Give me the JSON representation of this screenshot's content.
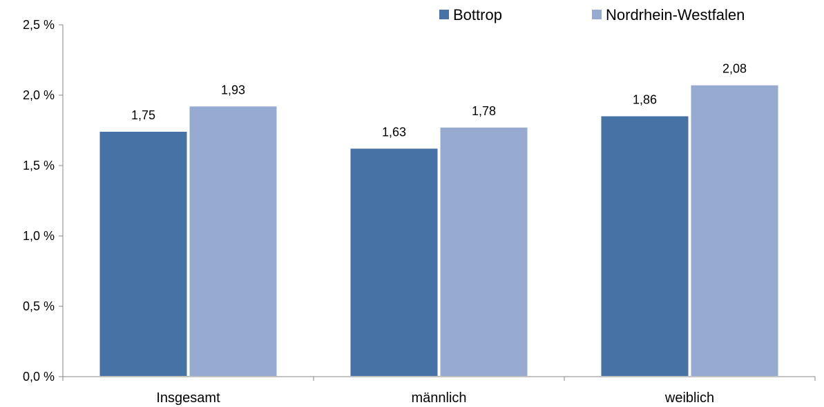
{
  "chart_data": {
    "type": "bar",
    "title": "",
    "xlabel": "",
    "ylabel": "",
    "categories": [
      "Insgesamt",
      "männlich",
      "weiblich"
    ],
    "series": [
      {
        "name": "Bottrop",
        "values": [
          1.75,
          1.63,
          1.86
        ],
        "labels": [
          "1,75",
          "1,63",
          "1,86"
        ],
        "color": "#4672a6"
      },
      {
        "name": "Nordrhein-Westfalen",
        "values": [
          1.93,
          1.78,
          2.08
        ],
        "labels": [
          "1,93",
          "1,78",
          "2,08"
        ],
        "color": "#97abd2"
      }
    ],
    "ylim": [
      0,
      2.5
    ],
    "yticks": [
      0,
      0.5,
      1.0,
      1.5,
      2.0,
      2.5
    ],
    "ytick_labels": [
      "0,0 %",
      "0,5 %",
      "1,0 %",
      "1,5 %",
      "2,0 %",
      "2,5 %"
    ],
    "grid": false,
    "legend_position": "top-right"
  }
}
